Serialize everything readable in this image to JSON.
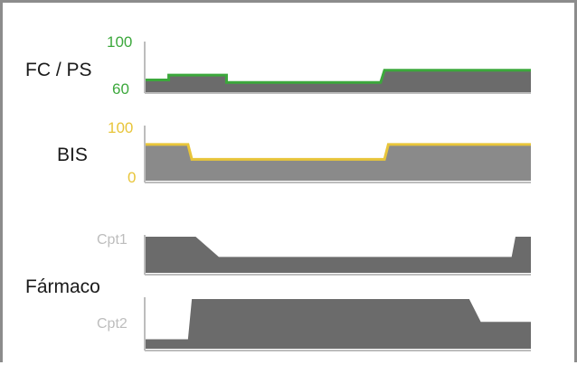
{
  "colors": {
    "frame": "#8c8c8c",
    "fill": "#6b6b6b",
    "fill_light": "#8a8a8a",
    "axis": "#bdbdbd",
    "hr_line": "#3ca83c",
    "bis_line": "#e8c53a",
    "hr_tick": "#3ca83c",
    "bis_tick": "#e8c53a",
    "cpt_label": "#bdbdbd"
  },
  "panels": {
    "hr_bp": {
      "label": "FC / PS",
      "tick_max": "100",
      "tick_min": "60",
      "ymin": 60,
      "ymax": 100,
      "x": [
        0,
        6,
        6,
        21,
        21,
        61,
        62,
        100
      ],
      "y": [
        70,
        70,
        74,
        74,
        68,
        68,
        78,
        78
      ]
    },
    "bis": {
      "label": "BIS",
      "tick_max": "100",
      "tick_min": "0",
      "ymin": 0,
      "ymax": 100,
      "x": [
        0,
        11,
        12,
        62,
        63,
        100
      ],
      "y": [
        68,
        68,
        40,
        40,
        68,
        68
      ]
    },
    "drug": {
      "label": "Fármaco",
      "cpt1": {
        "label": "Cpt1",
        "x": [
          0,
          13,
          19,
          95,
          96,
          100
        ],
        "y": [
          100,
          100,
          44,
          44,
          100,
          100
        ]
      },
      "cpt2": {
        "label": "Cpt2",
        "x": [
          0,
          11,
          12,
          84,
          87,
          100
        ],
        "y": [
          19,
          19,
          100,
          100,
          54,
          54
        ]
      }
    }
  }
}
